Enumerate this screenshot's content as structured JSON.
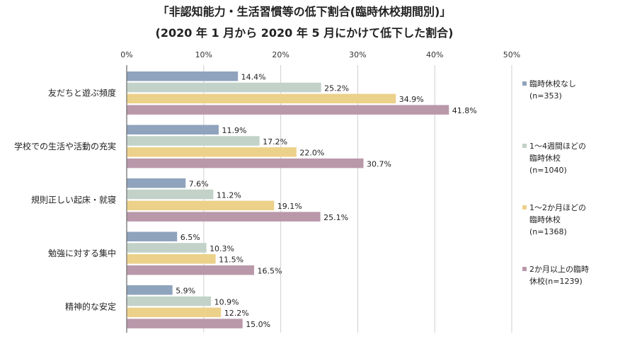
{
  "chart_data": {
    "type": "bar",
    "orientation": "horizontal",
    "title": "「非認知能力・生活習慣等の低下割合(臨時休校期間別)」",
    "subtitle": "(2020 年 1 月から 2020 年 5 月にかけて低下した割合)",
    "xlim": [
      0,
      50
    ],
    "xticks": [
      0,
      10,
      20,
      30,
      40,
      50
    ],
    "xtick_labels": [
      "0%",
      "10%",
      "20%",
      "30%",
      "40%",
      "50%"
    ],
    "categories": [
      "友だちと遊ぶ頻度",
      "学校での生活や活動の充実",
      "規則正しい起床・就寝",
      "勉強に対する集中",
      "精神的な安定"
    ],
    "series": [
      {
        "name": "臨時休校なし (n=353)",
        "legend_lines": [
          "臨時休校なし",
          "(n=353)"
        ],
        "color": "#8fa3bd",
        "values": [
          14.4,
          11.9,
          7.6,
          6.5,
          5.9
        ],
        "labels": [
          "14.4%",
          "11.9%",
          "7.6%",
          "6.5%",
          "5.9%"
        ]
      },
      {
        "name": "1〜4週間ほどの臨時休校 (n=1040)",
        "legend_lines": [
          "1〜4週間ほどの",
          "臨時休校",
          "(n=1040)"
        ],
        "color": "#c2d2c8",
        "values": [
          25.2,
          17.2,
          11.2,
          10.3,
          10.9
        ],
        "labels": [
          "25.2%",
          "17.2%",
          "11.2%",
          "10.3%",
          "10.9%"
        ]
      },
      {
        "name": "1〜2か月ほどの臨時休校 (n=1368)",
        "legend_lines": [
          "1〜2か月ほどの",
          "臨時休校",
          "(n=1368)"
        ],
        "color": "#ecd18a",
        "values": [
          34.9,
          22.0,
          19.1,
          11.5,
          12.2
        ],
        "labels": [
          "34.9%",
          "22.0%",
          "19.1%",
          "11.5%",
          "12.2%"
        ]
      },
      {
        "name": "2か月以上の臨時休校 (n=1239)",
        "legend_lines": [
          "2か月以上の臨時",
          "休校(n=1239)"
        ],
        "color": "#b998aa",
        "values": [
          41.8,
          30.7,
          25.1,
          16.5,
          15.0
        ],
        "labels": [
          "41.8%",
          "30.7%",
          "25.1%",
          "16.5%",
          "15.0%"
        ]
      }
    ],
    "grid": true,
    "legend_position": "right"
  }
}
